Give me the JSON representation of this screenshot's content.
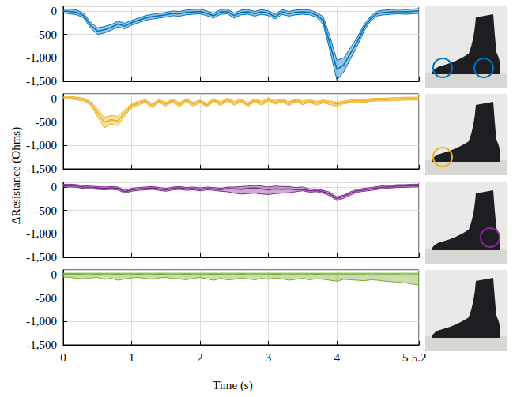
{
  "chart_data": {
    "type": "line",
    "x_label": "Time (s)",
    "y_label": "ΔResistance (Ohms)",
    "xlim": [
      0,
      5.2
    ],
    "xticks": [
      0,
      1,
      2,
      3,
      4,
      5
    ],
    "ylim": [
      -1500,
      100
    ],
    "yticks": [
      -1500,
      -1000,
      -500,
      0
    ],
    "grid": true,
    "x": [
      0,
      0.1,
      0.2,
      0.3,
      0.4,
      0.5,
      0.6,
      0.7,
      0.8,
      0.9,
      1,
      1.1,
      1.2,
      1.3,
      1.4,
      1.5,
      1.6,
      1.7,
      1.8,
      1.9,
      2,
      2.1,
      2.2,
      2.3,
      2.4,
      2.5,
      2.6,
      2.7,
      2.8,
      2.9,
      3,
      3.1,
      3.2,
      3.3,
      3.4,
      3.5,
      3.6,
      3.7,
      3.8,
      3.9,
      4,
      4.1,
      4.2,
      4.3,
      4.4,
      4.5,
      4.6,
      4.7,
      4.8,
      4.9,
      5,
      5.1,
      5.2
    ],
    "panels": [
      {
        "color": "#0072BD",
        "values": [
          0,
          -10,
          -30,
          -100,
          -300,
          -430,
          -400,
          -350,
          -280,
          -320,
          -250,
          -200,
          -150,
          -120,
          -100,
          -80,
          -50,
          -60,
          -30,
          -20,
          -10,
          -50,
          -100,
          -20,
          -10,
          -100,
          -30,
          -20,
          -60,
          -20,
          -50,
          -120,
          -20,
          -60,
          -30,
          -20,
          -30,
          -80,
          -200,
          -700,
          -1250,
          -1150,
          -900,
          -650,
          -350,
          -150,
          -50,
          -30,
          -20,
          -10,
          -20,
          -10,
          0
        ],
        "upper": [
          40,
          40,
          20,
          -50,
          -240,
          -360,
          -330,
          -290,
          -220,
          -260,
          -200,
          -150,
          -100,
          -70,
          -50,
          -30,
          0,
          -10,
          20,
          30,
          40,
          0,
          -50,
          30,
          40,
          -50,
          20,
          30,
          -10,
          30,
          0,
          -70,
          30,
          -10,
          20,
          30,
          20,
          -30,
          -120,
          -550,
          -1050,
          -1000,
          -780,
          -560,
          -280,
          -100,
          0,
          20,
          30,
          40,
          30,
          40,
          50
        ],
        "lower": [
          -40,
          -60,
          -80,
          -150,
          -360,
          -500,
          -470,
          -410,
          -340,
          -380,
          -300,
          -250,
          -200,
          -170,
          -150,
          -130,
          -100,
          -110,
          -80,
          -70,
          -60,
          -100,
          -150,
          -70,
          -60,
          -150,
          -80,
          -70,
          -110,
          -70,
          -100,
          -170,
          -70,
          -110,
          -80,
          -70,
          -80,
          -130,
          -280,
          -850,
          -1470,
          -1300,
          -1020,
          -740,
          -420,
          -200,
          -100,
          -80,
          -70,
          -60,
          -70,
          -60,
          -50
        ]
      },
      {
        "color": "#EDB120",
        "values": [
          20,
          20,
          0,
          -20,
          -100,
          -300,
          -500,
          -450,
          -480,
          -300,
          -150,
          -100,
          -50,
          -150,
          -50,
          -120,
          -40,
          -130,
          -30,
          -120,
          -60,
          -140,
          -30,
          -110,
          -20,
          -100,
          -40,
          -130,
          -30,
          -100,
          -20,
          -80,
          -40,
          -110,
          -30,
          -90,
          -50,
          -100,
          -60,
          -90,
          -120,
          -80,
          -60,
          -40,
          -50,
          -30,
          -20,
          -20,
          -10,
          -10,
          0,
          0,
          0
        ],
        "upper": [
          50,
          50,
          30,
          10,
          -60,
          -220,
          -400,
          -360,
          -380,
          -230,
          -110,
          -60,
          -20,
          -110,
          -20,
          -80,
          -10,
          -90,
          0,
          -80,
          -30,
          -100,
          0,
          -70,
          10,
          -60,
          -10,
          -90,
          0,
          -60,
          10,
          -40,
          -10,
          -70,
          0,
          -50,
          -20,
          -60,
          -30,
          -50,
          -80,
          -50,
          -30,
          -10,
          -20,
          0,
          10,
          10,
          20,
          20,
          30,
          30,
          30
        ],
        "lower": [
          -10,
          -10,
          -30,
          -50,
          -140,
          -380,
          -620,
          -540,
          -580,
          -370,
          -190,
          -140,
          -80,
          -190,
          -80,
          -160,
          -70,
          -170,
          -60,
          -160,
          -90,
          -180,
          -60,
          -150,
          -50,
          -140,
          -70,
          -170,
          -60,
          -140,
          -50,
          -120,
          -70,
          -150,
          -60,
          -130,
          -80,
          -140,
          -90,
          -130,
          -160,
          -110,
          -90,
          -70,
          -80,
          -60,
          -50,
          -50,
          -40,
          -40,
          -30,
          -30,
          -30
        ]
      },
      {
        "color": "#7E2F8E",
        "values": [
          30,
          30,
          20,
          0,
          -10,
          -20,
          -30,
          -20,
          -30,
          -100,
          -60,
          -40,
          -30,
          -20,
          -40,
          -60,
          -30,
          -20,
          -40,
          -30,
          -50,
          -30,
          -40,
          -60,
          -30,
          -40,
          -50,
          -30,
          -20,
          -40,
          -60,
          -40,
          -50,
          -40,
          -60,
          -50,
          -80,
          -70,
          -100,
          -150,
          -250,
          -200,
          -130,
          -80,
          -60,
          -40,
          -20,
          0,
          10,
          20,
          20,
          30,
          30
        ],
        "upper": [
          60,
          60,
          50,
          30,
          20,
          10,
          0,
          10,
          0,
          -70,
          -30,
          -10,
          0,
          10,
          -10,
          -30,
          0,
          10,
          -10,
          0,
          -20,
          0,
          -10,
          -30,
          0,
          0,
          10,
          20,
          30,
          20,
          0,
          20,
          10,
          10,
          -10,
          0,
          -40,
          -40,
          -70,
          -110,
          -210,
          -170,
          -100,
          -50,
          -30,
          -10,
          10,
          30,
          40,
          50,
          50,
          60,
          60
        ],
        "lower": [
          0,
          0,
          -10,
          -30,
          -40,
          -50,
          -60,
          -50,
          -60,
          -130,
          -90,
          -70,
          -60,
          -50,
          -70,
          -90,
          -60,
          -50,
          -70,
          -60,
          -80,
          -60,
          -70,
          -90,
          -100,
          -130,
          -150,
          -140,
          -130,
          -150,
          -160,
          -140,
          -130,
          -120,
          -100,
          -80,
          -110,
          -100,
          -130,
          -190,
          -290,
          -240,
          -170,
          -110,
          -90,
          -70,
          -50,
          -30,
          -20,
          -10,
          -10,
          0,
          0
        ]
      },
      {
        "color": "#77AC30",
        "values": [
          10,
          10,
          10,
          0,
          0,
          10,
          0,
          0,
          10,
          0,
          0,
          10,
          0,
          0,
          10,
          0,
          0,
          0,
          10,
          0,
          0,
          0,
          10,
          0,
          0,
          0,
          10,
          0,
          0,
          0,
          0,
          10,
          0,
          0,
          0,
          0,
          0,
          10,
          0,
          0,
          0,
          0,
          0,
          0,
          0,
          -10,
          0,
          0,
          0,
          0,
          -10,
          0,
          0
        ],
        "upper": [
          30,
          30,
          30,
          30,
          30,
          30,
          30,
          30,
          30,
          30,
          30,
          30,
          30,
          30,
          30,
          30,
          30,
          30,
          30,
          30,
          30,
          30,
          30,
          30,
          30,
          30,
          30,
          30,
          30,
          30,
          30,
          30,
          30,
          30,
          30,
          30,
          30,
          30,
          30,
          30,
          30,
          30,
          30,
          30,
          30,
          30,
          30,
          30,
          30,
          30,
          30,
          30,
          30
        ],
        "lower": [
          -50,
          -60,
          -80,
          -90,
          -70,
          -60,
          -100,
          -80,
          -120,
          -90,
          -70,
          -60,
          -80,
          -100,
          -70,
          -60,
          -80,
          -90,
          -110,
          -80,
          -60,
          -90,
          -120,
          -80,
          -110,
          -100,
          -70,
          -90,
          -110,
          -80,
          -100,
          -70,
          -90,
          -120,
          -100,
          -80,
          -110,
          -90,
          -100,
          -120,
          -140,
          -100,
          -110,
          -120,
          -130,
          -110,
          -120,
          -140,
          -150,
          -160,
          -180,
          -200,
          -220
        ]
      }
    ]
  }
}
